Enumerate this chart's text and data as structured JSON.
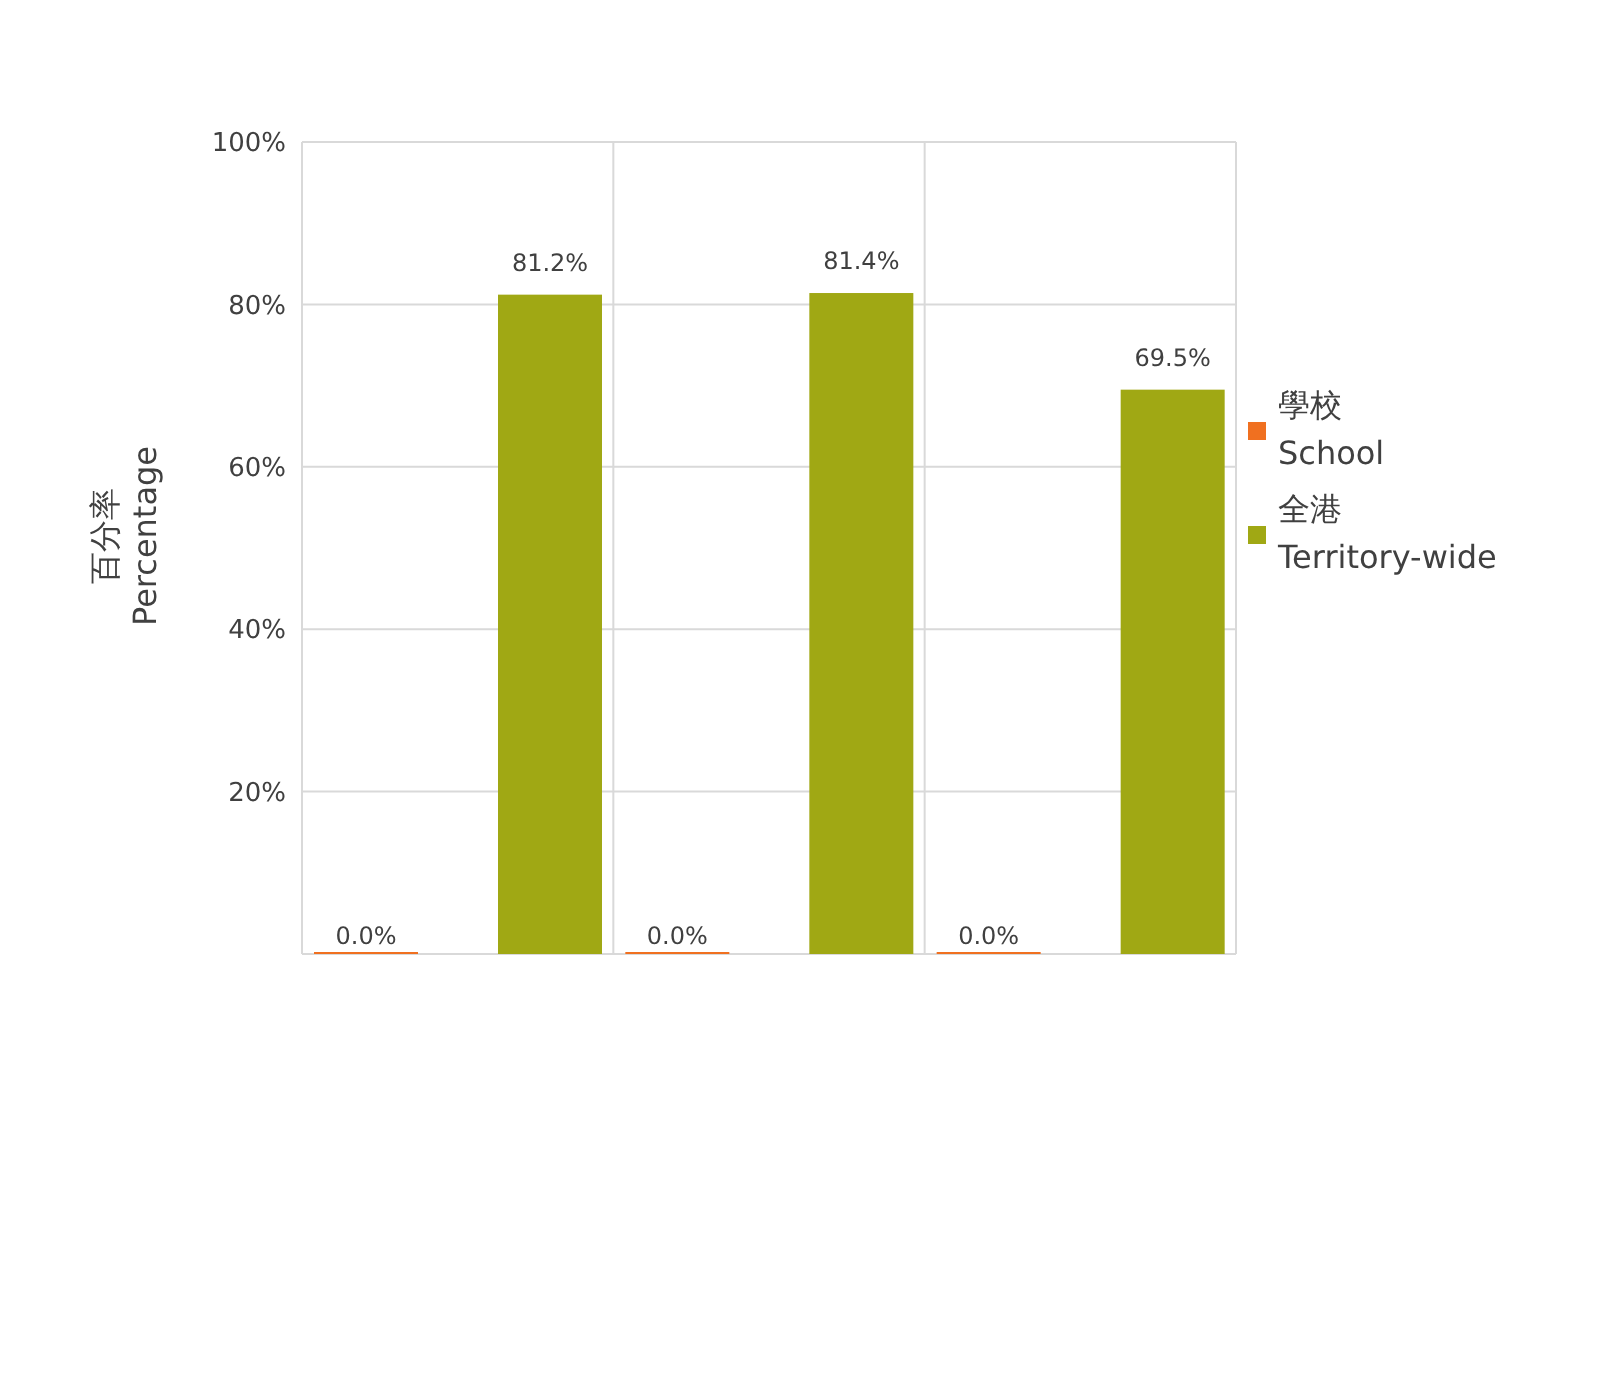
{
  "chart_data": {
    "type": "bar",
    "ylabel": "百分率\nPercentage",
    "categories": [
      null,
      null,
      null
    ],
    "series": [
      {
        "name": "學校\nSchool",
        "color": "#f07020",
        "values": [
          0,
          0,
          0
        ],
        "value_labels": [
          "0.0%",
          "0.0%",
          "0.0%"
        ]
      },
      {
        "name": "全港\nTerritory-wide",
        "color": "#a0a814",
        "values": [
          81.2,
          81.4,
          69.5
        ],
        "value_labels": [
          "81.2%",
          "81.4%",
          "69.5%"
        ]
      }
    ],
    "ylim": [
      0,
      100
    ],
    "yticks": [
      {
        "value": 20,
        "label": "20%"
      },
      {
        "value": 40,
        "label": "40%"
      },
      {
        "value": 60,
        "label": "60%"
      },
      {
        "value": 80,
        "label": "80%"
      },
      {
        "value": 100,
        "label": "100%"
      }
    ],
    "grid": true,
    "legend": "right"
  }
}
